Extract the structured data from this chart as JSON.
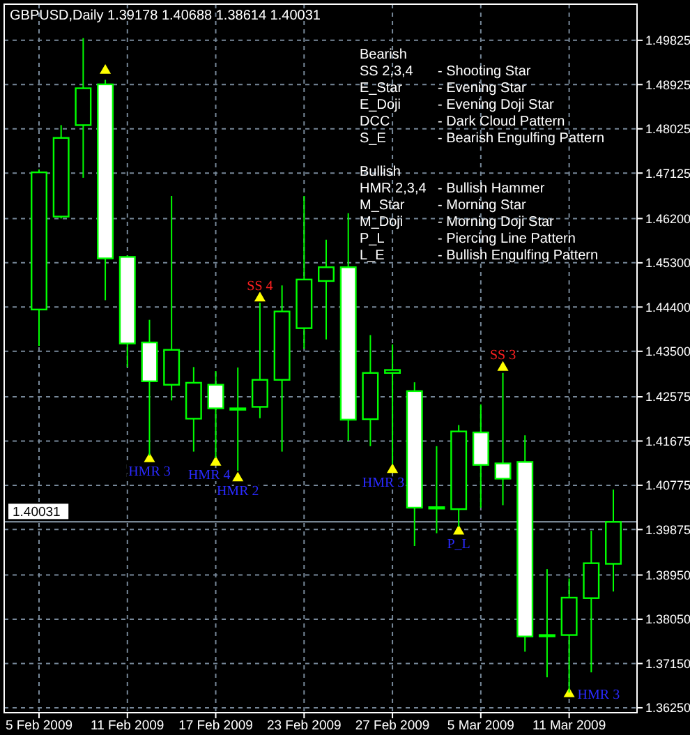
{
  "chart_data": {
    "type": "candlestick",
    "title": "GBPUSD,Daily 1.39178 1.40688 1.38614 1.40031",
    "categories": [
      "5 Feb 2009",
      null,
      null,
      null,
      "11 Feb 2009",
      null,
      null,
      null,
      "17 Feb 2009",
      null,
      null,
      null,
      "23 Feb 2009",
      null,
      null,
      null,
      "27 Feb 2009",
      null,
      null,
      null,
      "5 Mar 2009",
      null,
      null,
      null,
      "11 Mar 2009",
      null,
      null
    ],
    "ohlc": [
      [
        1.4435,
        1.472,
        1.4361,
        1.4714
      ],
      [
        1.4624,
        1.481,
        1.462,
        1.4784
      ],
      [
        1.481,
        1.4987,
        1.4703,
        1.4885
      ],
      [
        1.4893,
        1.4902,
        1.4454,
        1.4539
      ],
      [
        1.4542,
        1.4545,
        1.4318,
        1.4366
      ],
      [
        1.4368,
        1.4414,
        1.4138,
        1.4289
      ],
      [
        1.4282,
        1.4666,
        1.425,
        1.4353
      ],
      [
        1.4213,
        1.4318,
        1.4146,
        1.4286
      ],
      [
        1.4282,
        1.431,
        1.4133,
        1.4234
      ],
      [
        1.4234,
        1.4317,
        1.4107,
        1.4234
      ],
      [
        1.4237,
        1.4449,
        1.4214,
        1.4292
      ],
      [
        1.4292,
        1.4484,
        1.4146,
        1.4431
      ],
      [
        1.4397,
        1.4666,
        1.4355,
        1.4496
      ],
      [
        1.4493,
        1.4577,
        1.4374,
        1.4521
      ],
      [
        1.4521,
        1.4631,
        1.4168,
        1.4211
      ],
      [
        1.4212,
        1.4383,
        1.4157,
        1.4306
      ],
      [
        1.4306,
        1.4364,
        1.412,
        1.4312
      ],
      [
        1.4269,
        1.4287,
        1.3954,
        1.4032
      ],
      [
        1.4033,
        1.4157,
        1.398,
        1.4033
      ],
      [
        1.4029,
        1.42,
        1.3993,
        1.4187
      ],
      [
        1.4185,
        1.4242,
        1.4032,
        1.4119
      ],
      [
        1.4122,
        1.4306,
        1.4037,
        1.4091
      ],
      [
        1.4125,
        1.4179,
        1.3739,
        1.377
      ],
      [
        1.3773,
        1.3907,
        1.3687,
        1.3773
      ],
      [
        1.3773,
        1.3888,
        1.3656,
        1.3849
      ],
      [
        1.3848,
        1.3985,
        1.3697,
        1.3919
      ],
      [
        1.39178,
        1.40688,
        1.38614,
        1.40031
      ]
    ],
    "color": "#00ff00",
    "colors": [
      "#000000",
      "#000000",
      "#000000",
      "#ffffff",
      "#ffffff",
      "#ffffff",
      "#000000",
      "#000000",
      "#ffffff",
      "#000000",
      "#000000",
      "#000000",
      "#000000",
      "#000000",
      "#ffffff",
      "#000000",
      "#000000",
      "#ffffff",
      "#000000",
      "#000000",
      "#ffffff",
      "#ffffff",
      "#ffffff",
      "#000000",
      "#000000",
      "#000000",
      "#000000"
    ],
    "series": [
      {
        "type": "scatter",
        "color": "#ffff00",
        "values": [
          null,
          null,
          null,
          1.4921,
          null,
          null,
          null,
          null,
          null,
          null,
          1.4458,
          null,
          null,
          null,
          null,
          null,
          null,
          null,
          null,
          null,
          null,
          1.4317,
          null,
          null,
          null,
          null,
          null
        ],
        "value_labels": [
          null,
          null,
          null,
          null,
          null,
          null,
          null,
          null,
          null,
          null,
          "SS 4",
          null,
          null,
          null,
          null,
          null,
          null,
          null,
          null,
          null,
          null,
          "SS 3",
          null,
          null,
          null,
          null,
          null
        ]
      },
      {
        "type": "scatter",
        "color": "#ffff00",
        "values": [
          null,
          null,
          null,
          null,
          null,
          1.4131,
          null,
          null,
          1.4124,
          1.4092,
          null,
          null,
          null,
          null,
          null,
          null,
          1.4109,
          null,
          null,
          1.3984,
          null,
          null,
          null,
          null,
          1.3653,
          null,
          null
        ],
        "value_labels": [
          null,
          null,
          null,
          null,
          null,
          "HMR 3",
          null,
          null,
          "HMR 4",
          "HMR 2",
          null,
          null,
          null,
          null,
          null,
          null,
          "HMR 3",
          null,
          null,
          "P_L",
          null,
          null,
          null,
          null,
          "HMR 3",
          null,
          null
        ]
      }
    ],
    "marker": "triangle",
    "ylim": [
      1.3615,
      1.5056
    ],
    "yticks": [
      {
        "value": 1.3625,
        "label": "1.36250"
      },
      {
        "value": 1.3715,
        "label": "1.37150"
      },
      {
        "value": 1.3805,
        "label": "1.38050"
      },
      {
        "value": 1.3895,
        "label": "1.38950"
      },
      {
        "value": 1.39875,
        "label": "1.39875"
      },
      {
        "value": 1.40775,
        "label": "1.40775"
      },
      {
        "value": 1.41675,
        "label": "1.41675"
      },
      {
        "value": 1.42575,
        "label": "1.42575"
      },
      {
        "value": 1.435,
        "label": "1.43500"
      },
      {
        "value": 1.444,
        "label": "1.44400"
      },
      {
        "value": 1.453,
        "label": "1.45300"
      },
      {
        "value": 1.462,
        "label": "1.46200"
      },
      {
        "value": 1.47125,
        "label": "1.47125"
      },
      {
        "value": 1.48025,
        "label": "1.48025"
      },
      {
        "value": 1.48925,
        "label": "1.48925"
      },
      {
        "value": 1.49825,
        "label": "1.49825"
      }
    ],
    "grid": true,
    "ref_lines": [
      {
        "axis": "y",
        "value": 1.40031,
        "label": "1.40031",
        "color": "#8fa0b0"
      }
    ],
    "annotations": [
      "Bearish",
      "SS 2,3,4 - Shooting Star",
      "E_Star - Evening Star",
      "E_Doji - Evening Doji Star",
      "DCC - Dark Cloud Pattern",
      "S_E - Bearish Engulfing Pattern",
      "Bullish",
      "HMR 2,3,4 - Bullish Hammer",
      "M_Star - Morning Star",
      "M_Doji - Morning Doji Star",
      "P_L - Piercing Line Pattern",
      "L_E - Bullish Engulfing Pattern"
    ]
  }
}
